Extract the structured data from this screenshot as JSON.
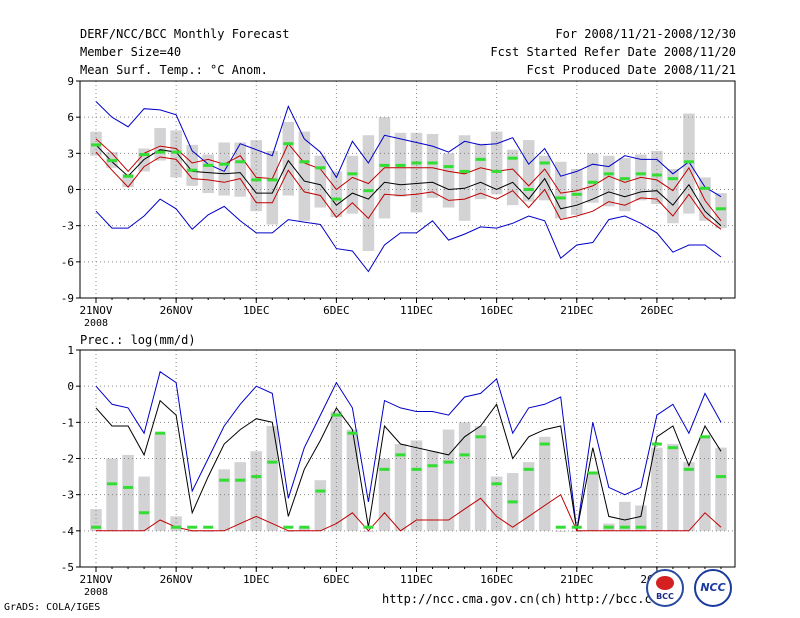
{
  "header": {
    "title": "DERF/NCC/BCC Monthly Forecast",
    "member_size": "Member Size=40",
    "variable1": "Mean Surf. Temp.: °C Anom.",
    "period": "For 2008/11/21-2008/12/30",
    "started": "Fcst Started Refer Date 2008/11/20",
    "produced": "Fcst Produced Date 2008/11/21"
  },
  "footer": {
    "grads": "GrADS: COLA/IGES",
    "url1": "http://ncc.cma.gov.cn(ch)",
    "url2": "http://bcc.c",
    "logo_bcc": "BCC",
    "logo_ncc": "NCC"
  },
  "colors": {
    "bar": "#d3d3d5",
    "mean": "#000000",
    "envelope": "#c00000",
    "extreme": "#0000c8",
    "member": "#33dd33",
    "grid": "#888888"
  },
  "chart_data": [
    {
      "type": "line",
      "title": "Mean Surf. Temp.: °C Anom.",
      "ylim": [
        -9,
        9
      ],
      "yticks": [
        -9,
        -6,
        -3,
        0,
        3,
        6,
        9
      ],
      "x_range": [
        21,
        60
      ],
      "x_ticks": [
        21,
        26,
        31,
        36,
        41,
        46,
        51,
        56
      ],
      "x_tick_labels": [
        "21NOV",
        "26NOV",
        "1DEC",
        "6DEC",
        "11DEC",
        "16DEC",
        "21DEC",
        "26DEC"
      ],
      "x_sublabel": "2008",
      "days": [
        21,
        22,
        23,
        24,
        25,
        26,
        27,
        28,
        29,
        30,
        31,
        32,
        33,
        34,
        35,
        36,
        37,
        38,
        39,
        40,
        41,
        42,
        43,
        44,
        45,
        46,
        47,
        48,
        49,
        50,
        51,
        52,
        53,
        54,
        55,
        56,
        57,
        58,
        59,
        60
      ],
      "series": [
        {
          "name": "max",
          "values": [
            7.3,
            6.0,
            5.2,
            6.7,
            6.6,
            6.2,
            3.2,
            2.1,
            1.5,
            3.8,
            3.3,
            2.8,
            6.9,
            4.2,
            3.1,
            1.0,
            4.0,
            2.2,
            4.5,
            4.2,
            3.9,
            3.6,
            3.1,
            4.0,
            3.7,
            3.8,
            4.3,
            2.1,
            3.4,
            1.1,
            1.5,
            2.1,
            1.9,
            2.8,
            2.5,
            2.5,
            1.3,
            2.3,
            0.2,
            -0.6
          ]
        },
        {
          "name": "upper",
          "values": [
            4.2,
            3.0,
            1.5,
            3.0,
            3.6,
            3.4,
            2.2,
            2.5,
            2.1,
            2.8,
            1.0,
            0.9,
            3.8,
            2.2,
            1.7,
            0.0,
            1.0,
            0.5,
            1.8,
            1.8,
            1.8,
            1.8,
            1.5,
            1.3,
            1.8,
            1.5,
            1.7,
            0.3,
            1.7,
            -0.3,
            -0.1,
            0.3,
            1.1,
            0.6,
            1.0,
            0.8,
            -0.1,
            1.8,
            -0.9,
            -2.6
          ]
        },
        {
          "name": "mean",
          "values": [
            3.7,
            2.3,
            1.1,
            2.5,
            3.3,
            3.1,
            1.5,
            1.4,
            1.3,
            1.4,
            -0.3,
            -0.3,
            2.4,
            0.7,
            0.4,
            -1.3,
            -0.3,
            -0.8,
            0.6,
            0.4,
            0.5,
            0.6,
            0.0,
            0.1,
            0.6,
            0.0,
            0.6,
            -0.8,
            0.9,
            -1.6,
            -1.3,
            -0.8,
            -0.2,
            -0.6,
            -0.2,
            -0.1,
            -1.3,
            0.4,
            -1.8,
            -3.0
          ]
        },
        {
          "name": "lower",
          "values": [
            3.1,
            1.6,
            0.2,
            1.9,
            2.7,
            2.5,
            0.9,
            0.8,
            0.6,
            0.9,
            -1.1,
            -1.1,
            1.6,
            -0.2,
            -0.5,
            -2.3,
            -1.1,
            -2.4,
            -0.4,
            -0.5,
            -0.4,
            -0.2,
            -0.9,
            -0.8,
            -0.3,
            -0.8,
            -0.1,
            -1.5,
            0.0,
            -2.5,
            -2.2,
            -1.8,
            -1.0,
            -1.3,
            -0.7,
            -0.8,
            -2.2,
            -0.4,
            -2.3,
            -3.3
          ]
        },
        {
          "name": "min",
          "values": [
            -1.8,
            -3.2,
            -3.2,
            -2.2,
            -0.8,
            -1.6,
            -3.3,
            -2.1,
            -1.4,
            -2.6,
            -3.6,
            -3.6,
            -2.5,
            -2.7,
            -2.9,
            -4.9,
            -5.1,
            -6.8,
            -4.6,
            -3.6,
            -3.6,
            -2.6,
            -4.2,
            -3.7,
            -3.1,
            -3.2,
            -2.8,
            -2.2,
            -2.6,
            -5.7,
            -4.6,
            -4.4,
            -2.5,
            -2.2,
            -2.8,
            -3.6,
            -5.2,
            -4.6,
            -4.6,
            -5.6
          ]
        },
        {
          "name": "member",
          "values": [
            3.7,
            2.4,
            1.1,
            2.9,
            3.1,
            3.1,
            1.6,
            2.0,
            2.1,
            2.3,
            0.8,
            0.8,
            3.8,
            2.3,
            1.8,
            -0.8,
            1.3,
            -0.1,
            2.0,
            2.0,
            2.2,
            2.2,
            1.9,
            1.5,
            2.5,
            1.5,
            2.6,
            0.0,
            2.2,
            -0.7,
            -0.4,
            0.6,
            1.3,
            0.9,
            1.3,
            1.2,
            0.9,
            2.3,
            0.1,
            -1.6
          ]
        }
      ],
      "bars_low": [
        2.8,
        1.8,
        0.2,
        1.5,
        2.4,
        1.0,
        0.3,
        -0.3,
        -0.5,
        -0.6,
        -1.8,
        -2.9,
        -0.5,
        -2.6,
        -1.5,
        -2.3,
        -2.0,
        -5.1,
        -2.4,
        -0.6,
        -1.9,
        -0.7,
        -1.5,
        -2.6,
        -0.8,
        -0.4,
        -1.3,
        -1.0,
        -0.9,
        -2.4,
        -2.1,
        -1.1,
        -1.4,
        -1.8,
        -0.9,
        -1.2,
        -2.8,
        -2.0,
        -2.6,
        -3.2
      ],
      "bars_high": [
        4.8,
        3.1,
        1.3,
        3.4,
        5.1,
        4.9,
        3.7,
        2.9,
        3.9,
        3.9,
        4.1,
        3.2,
        5.6,
        4.8,
        2.8,
        1.5,
        2.8,
        4.5,
        6.0,
        4.7,
        4.7,
        4.6,
        3.0,
        4.5,
        3.8,
        4.8,
        3.3,
        4.1,
        2.8,
        2.3,
        1.7,
        3.0,
        2.8,
        2.6,
        2.9,
        3.2,
        1.7,
        6.3,
        1.0,
        -0.3
      ]
    },
    {
      "type": "line",
      "title": "Prec.: log(mm/d)",
      "ylim": [
        -5,
        1
      ],
      "yticks": [
        -5,
        -4,
        -3,
        -2,
        -1,
        0,
        1
      ],
      "x_range": [
        21,
        60
      ],
      "x_ticks": [
        21,
        26,
        31,
        36,
        41,
        46,
        51,
        56
      ],
      "x_tick_labels": [
        "21NOV",
        "26NOV",
        "1DEC",
        "6DEC",
        "11DEC",
        "16DEC",
        "21DEC",
        "26DEC"
      ],
      "x_sublabel": "2008",
      "days": [
        21,
        22,
        23,
        24,
        25,
        26,
        27,
        28,
        29,
        30,
        31,
        32,
        33,
        34,
        35,
        36,
        37,
        38,
        39,
        40,
        41,
        42,
        43,
        44,
        45,
        46,
        47,
        48,
        49,
        50,
        51,
        52,
        53,
        54,
        55,
        56,
        57,
        58,
        59,
        60
      ],
      "series": [
        {
          "name": "max",
          "values": [
            0.0,
            -0.5,
            -0.6,
            -1.3,
            0.4,
            0.1,
            -2.9,
            -2.0,
            -1.1,
            -0.5,
            0.0,
            -0.2,
            -3.1,
            -1.7,
            -0.8,
            0.1,
            -0.6,
            -3.2,
            -0.4,
            -0.6,
            -0.7,
            -0.7,
            -0.8,
            -0.3,
            -0.2,
            0.2,
            -1.3,
            -0.6,
            -0.5,
            -0.3,
            -4.0,
            -1.0,
            -2.8,
            -3.0,
            -2.8,
            -0.8,
            -0.5,
            -1.3,
            -0.2,
            -1.0
          ]
        },
        {
          "name": "mean",
          "values": [
            -0.6,
            -1.1,
            -1.1,
            -1.9,
            -0.4,
            -0.8,
            -3.5,
            -2.5,
            -1.6,
            -1.2,
            -0.9,
            -1.0,
            -3.6,
            -2.3,
            -1.5,
            -0.6,
            -1.2,
            -3.9,
            -1.1,
            -1.6,
            -1.7,
            -1.8,
            -1.9,
            -1.4,
            -1.1,
            -0.5,
            -2.0,
            -1.4,
            -1.2,
            -1.1,
            -4.0,
            -1.7,
            -3.6,
            -3.7,
            -3.6,
            -1.4,
            -1.1,
            -2.2,
            -1.1,
            -1.8
          ]
        },
        {
          "name": "min",
          "values": [
            -4.0,
            -4.0,
            -4.0,
            -4.0,
            -3.7,
            -3.9,
            -4.0,
            -4.0,
            -4.0,
            -3.8,
            -3.6,
            -3.8,
            -4.0,
            -4.0,
            -4.0,
            -3.8,
            -3.5,
            -4.0,
            -3.5,
            -4.0,
            -3.7,
            -3.7,
            -3.7,
            -3.4,
            -3.1,
            -3.6,
            -3.9,
            -3.6,
            -3.3,
            -3.0,
            -4.0,
            -4.0,
            -4.0,
            -4.0,
            -4.0,
            -4.0,
            -4.0,
            -4.0,
            -3.5,
            -3.9
          ]
        },
        {
          "name": "member",
          "values": [
            -3.9,
            -2.7,
            -2.8,
            -3.5,
            -1.3,
            -3.9,
            -3.9,
            -3.9,
            -2.6,
            -2.6,
            -2.5,
            -2.1,
            -3.9,
            -3.9,
            -2.9,
            -0.8,
            -1.3,
            -3.9,
            -2.3,
            -1.9,
            -2.3,
            -2.2,
            -2.1,
            -1.9,
            -1.4,
            -2.7,
            -3.2,
            -2.3,
            -1.6,
            -3.9,
            -3.9,
            -2.4,
            -3.9,
            -3.9,
            -3.9,
            -1.6,
            -1.7,
            -2.3,
            -1.4,
            -2.5
          ]
        }
      ],
      "bars_low": [
        -4.0,
        -4.0,
        -4.0,
        -4.0,
        -4.0,
        -4.0,
        -4.0,
        -4.0,
        -4.0,
        -4.0,
        -4.0,
        -4.0,
        -4.0,
        -4.0,
        -4.0,
        -4.0,
        -4.0,
        -4.0,
        -4.0,
        -4.0,
        -4.0,
        -4.0,
        -4.0,
        -4.0,
        -4.0,
        -4.0,
        -4.0,
        -4.0,
        -4.0,
        -4.0,
        -4.0,
        -4.0,
        -4.0,
        -4.0,
        -4.0,
        -4.0,
        -4.0,
        -4.0,
        -4.0,
        -4.0
      ],
      "bars_high": [
        -3.4,
        -2.0,
        -1.9,
        -2.5,
        -1.3,
        -3.6,
        -4.0,
        -4.0,
        -2.3,
        -2.1,
        -1.8,
        -1.1,
        -4.0,
        -3.9,
        -2.6,
        -0.7,
        -1.2,
        -4.0,
        -2.0,
        -1.6,
        -1.5,
        -1.8,
        -1.2,
        -1.0,
        -1.1,
        -2.5,
        -2.4,
        -2.1,
        -1.4,
        -4.0,
        -4.0,
        -2.4,
        -3.8,
        -3.2,
        -3.3,
        -1.7,
        -1.6,
        -2.1,
        -1.4,
        -1.7
      ]
    }
  ]
}
